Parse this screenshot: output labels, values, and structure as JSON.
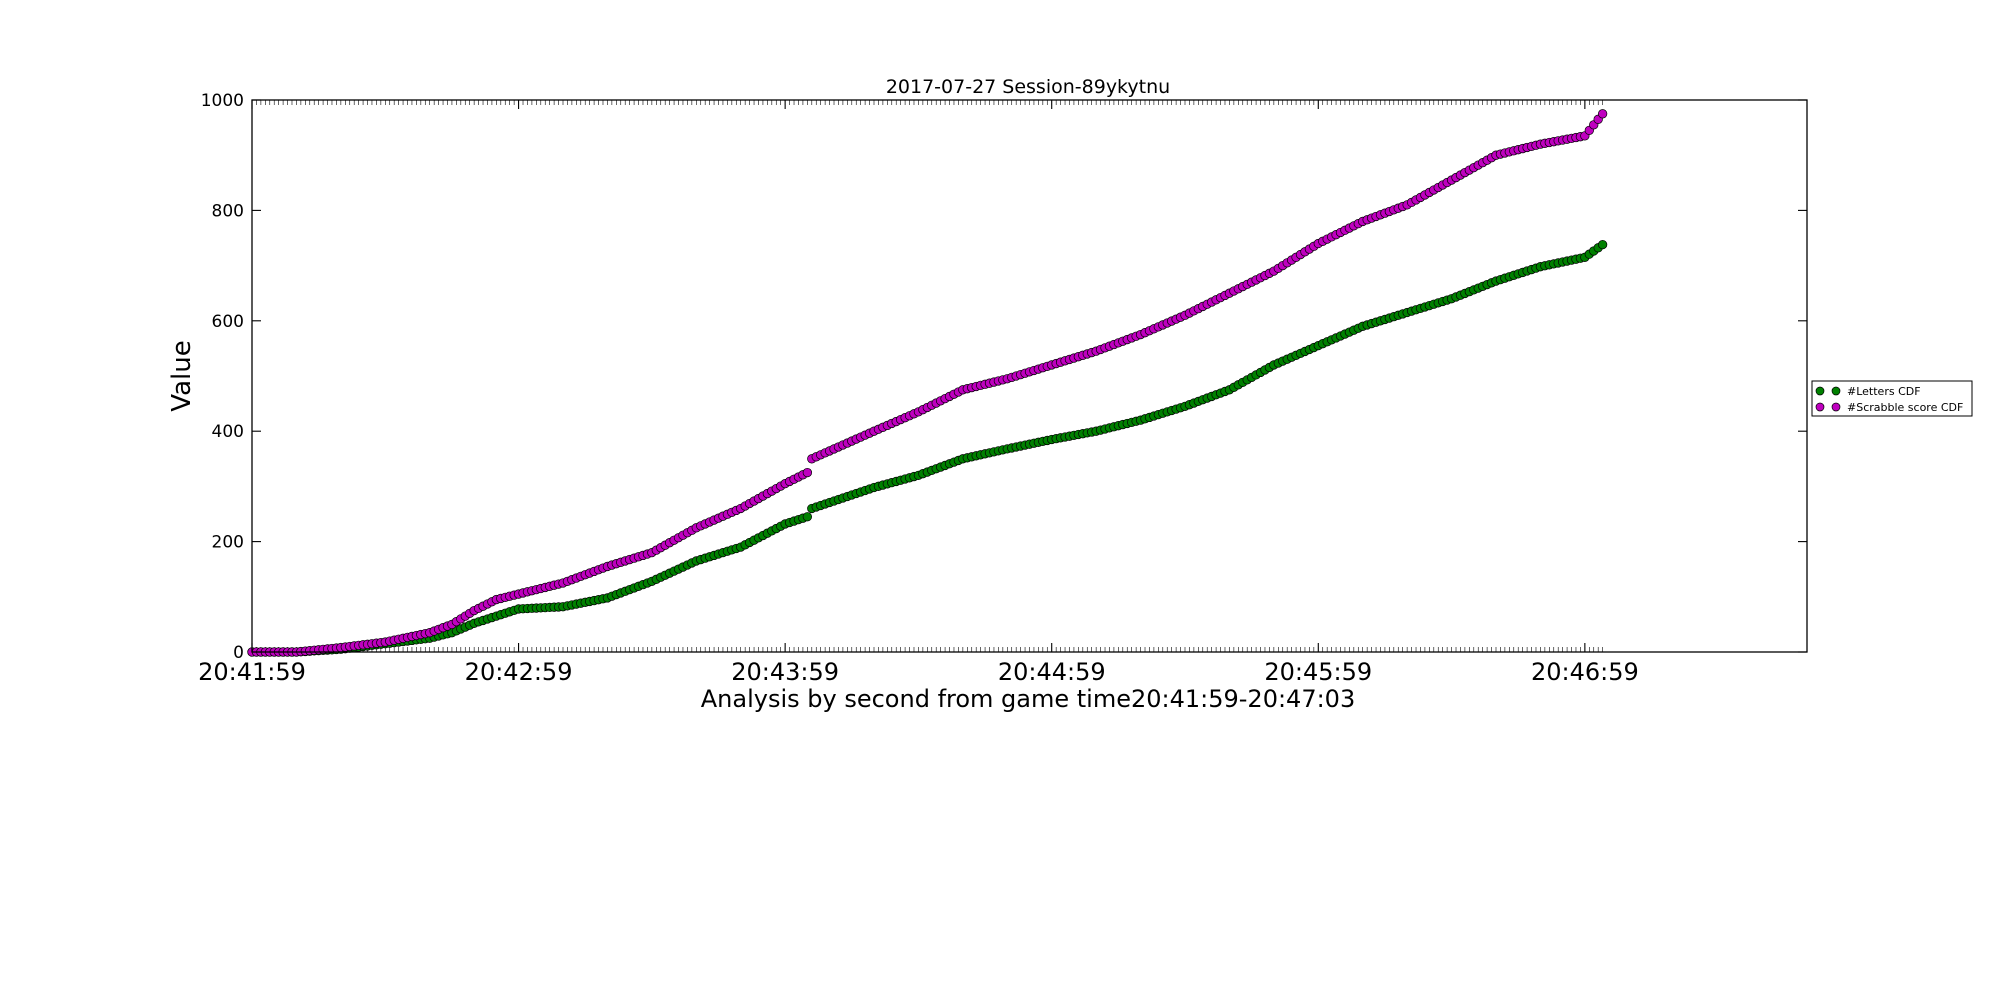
{
  "chart_data": {
    "type": "scatter",
    "title": "2017-07-27 Session-89ykytnu",
    "xlabel": "Analysis by second from game time20:41:59-20:47:03",
    "ylabel": "Value",
    "x_unit": "time (HH:MM:SS)",
    "xlim": [
      "20:41:59",
      "20:47:49"
    ],
    "ylim": [
      0,
      1000
    ],
    "x_ticks": [
      "20:41:59",
      "20:42:59",
      "20:43:59",
      "20:44:59",
      "20:45:59",
      "20:46:59"
    ],
    "y_ticks": [
      "0",
      "200",
      "400",
      "600",
      "800",
      "1000"
    ],
    "grid": false,
    "legend_position": "right, outside plot",
    "series": [
      {
        "name": "#Letters CDF",
        "color": "#008000",
        "points": [
          [
            "20:41:59",
            0
          ],
          [
            "20:42:09",
            0
          ],
          [
            "20:42:19",
            5
          ],
          [
            "20:42:29",
            15
          ],
          [
            "20:42:39",
            25
          ],
          [
            "20:42:44",
            35
          ],
          [
            "20:42:49",
            52
          ],
          [
            "20:42:54",
            65
          ],
          [
            "20:42:59",
            78
          ],
          [
            "20:43:09",
            82
          ],
          [
            "20:43:19",
            98
          ],
          [
            "20:43:29",
            128
          ],
          [
            "20:43:39",
            165
          ],
          [
            "20:43:49",
            190
          ],
          [
            "20:43:59",
            232
          ],
          [
            "20:44:04",
            245
          ],
          [
            "20:44:05",
            260
          ],
          [
            "20:44:19",
            298
          ],
          [
            "20:44:29",
            320
          ],
          [
            "20:44:39",
            350
          ],
          [
            "20:44:49",
            368
          ],
          [
            "20:44:59",
            385
          ],
          [
            "20:45:09",
            400
          ],
          [
            "20:45:19",
            420
          ],
          [
            "20:45:29",
            445
          ],
          [
            "20:45:39",
            475
          ],
          [
            "20:45:49",
            520
          ],
          [
            "20:45:59",
            555
          ],
          [
            "20:46:09",
            590
          ],
          [
            "20:46:19",
            615
          ],
          [
            "20:46:29",
            640
          ],
          [
            "20:46:39",
            672
          ],
          [
            "20:46:49",
            698
          ],
          [
            "20:46:59",
            715
          ],
          [
            "20:47:03",
            738
          ]
        ]
      },
      {
        "name": "#Scrabble score CDF",
        "color": "#bf00bf",
        "points": [
          [
            "20:41:59",
            0
          ],
          [
            "20:42:09",
            0
          ],
          [
            "20:42:19",
            8
          ],
          [
            "20:42:29",
            18
          ],
          [
            "20:42:39",
            35
          ],
          [
            "20:42:44",
            50
          ],
          [
            "20:42:49",
            75
          ],
          [
            "20:42:54",
            95
          ],
          [
            "20:42:59",
            105
          ],
          [
            "20:43:09",
            125
          ],
          [
            "20:43:19",
            155
          ],
          [
            "20:43:29",
            180
          ],
          [
            "20:43:39",
            225
          ],
          [
            "20:43:49",
            260
          ],
          [
            "20:43:59",
            305
          ],
          [
            "20:44:04",
            325
          ],
          [
            "20:44:05",
            350
          ],
          [
            "20:44:19",
            400
          ],
          [
            "20:44:29",
            435
          ],
          [
            "20:44:39",
            475
          ],
          [
            "20:44:49",
            495
          ],
          [
            "20:44:59",
            520
          ],
          [
            "20:45:09",
            545
          ],
          [
            "20:45:19",
            575
          ],
          [
            "20:45:29",
            610
          ],
          [
            "20:45:39",
            650
          ],
          [
            "20:45:49",
            690
          ],
          [
            "20:45:59",
            740
          ],
          [
            "20:46:09",
            780
          ],
          [
            "20:46:19",
            810
          ],
          [
            "20:46:29",
            855
          ],
          [
            "20:46:39",
            900
          ],
          [
            "20:46:49",
            920
          ],
          [
            "20:46:59",
            935
          ],
          [
            "20:47:03",
            975
          ]
        ]
      }
    ]
  }
}
